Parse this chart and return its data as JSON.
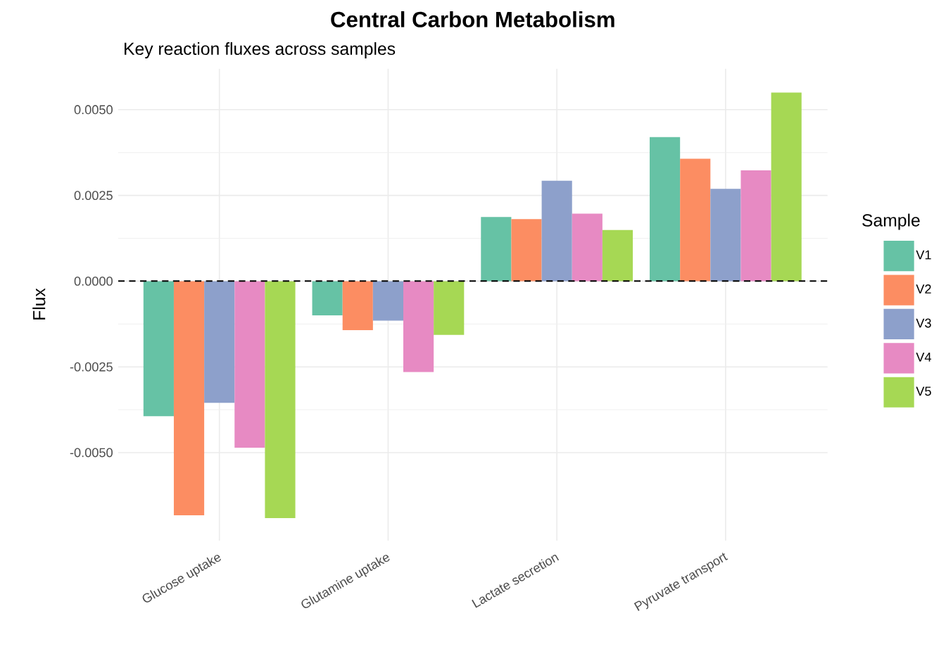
{
  "chart_data": {
    "type": "bar",
    "title": "Central Carbon Metabolism",
    "subtitle": "Key reaction fluxes across samples",
    "ylabel": "Flux",
    "legend_title": "Sample",
    "categories": [
      "Glucose uptake",
      "Glutamine uptake",
      "Lactate secretion",
      "Pyruvate transport"
    ],
    "series": [
      {
        "name": "V1",
        "color": "#66c2a5",
        "values": [
          -0.00394,
          -0.001,
          0.00187,
          0.0042
        ]
      },
      {
        "name": "V2",
        "color": "#fc8d62",
        "values": [
          -0.00683,
          -0.00143,
          0.00181,
          0.00357
        ]
      },
      {
        "name": "V3",
        "color": "#8da0cb",
        "values": [
          -0.00355,
          -0.00115,
          0.00293,
          0.00269
        ]
      },
      {
        "name": "V4",
        "color": "#e78ac3",
        "values": [
          -0.00486,
          -0.00265,
          0.00197,
          0.00323
        ]
      },
      {
        "name": "V5",
        "color": "#a6d854",
        "values": [
          -0.00691,
          -0.00157,
          0.00149,
          0.0055
        ]
      }
    ],
    "ylim": [
      -0.00757,
      0.00619
    ],
    "yticks": [
      {
        "value": -0.005,
        "label": "-0.0050"
      },
      {
        "value": -0.0025,
        "label": "-0.0025"
      },
      {
        "value": 0,
        "label": "0.0000"
      },
      {
        "value": 0.0025,
        "label": "0.0025"
      },
      {
        "value": 0.005,
        "label": "0.0050"
      }
    ],
    "ref_lines": [
      {
        "axis": "y",
        "value": 0,
        "color": "#000000",
        "line_style": "dashed"
      }
    ],
    "grid": true,
    "legend": "right"
  }
}
